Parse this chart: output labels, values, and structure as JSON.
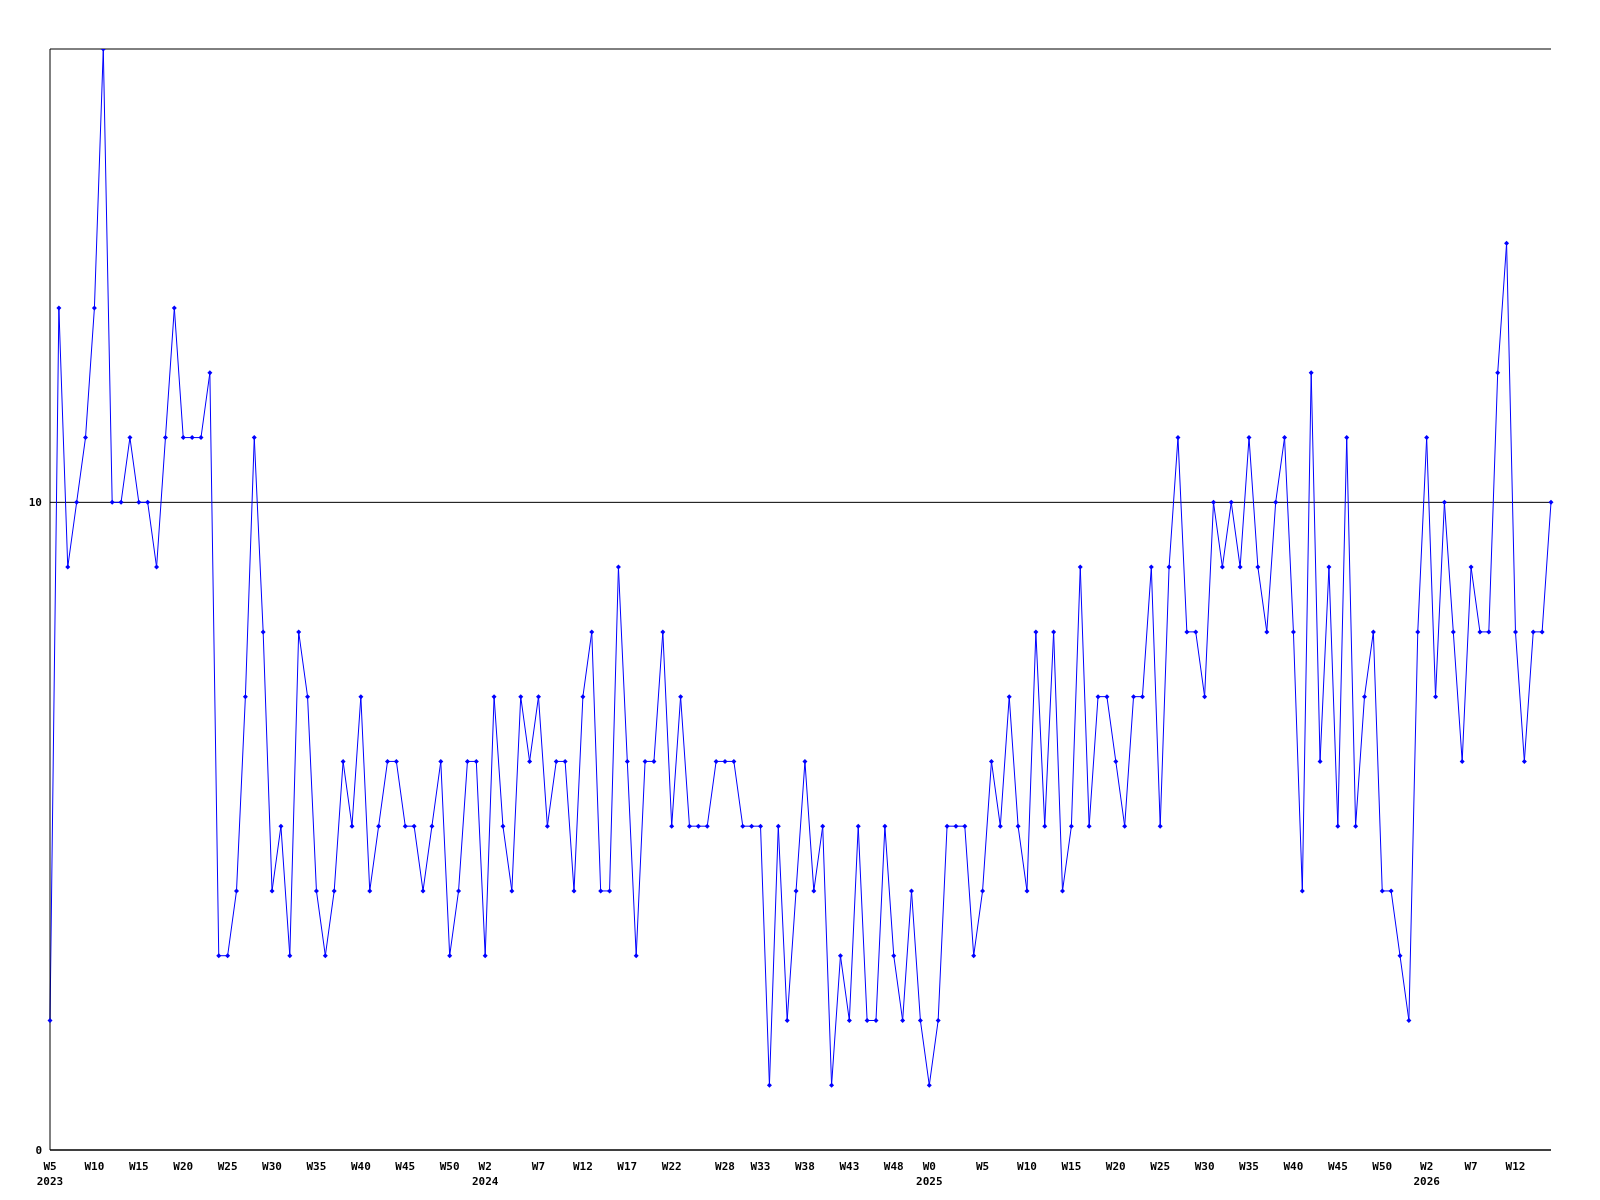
{
  "chart_data": {
    "type": "line",
    "categories": [
      "W5\n2023",
      null,
      null,
      null,
      null,
      "W10",
      null,
      null,
      null,
      null,
      "W15",
      null,
      null,
      null,
      null,
      "W20",
      null,
      null,
      null,
      null,
      "W25",
      null,
      null,
      null,
      null,
      "W30",
      null,
      null,
      null,
      null,
      "W35",
      null,
      null,
      null,
      null,
      "W40",
      null,
      null,
      null,
      null,
      "W45",
      null,
      null,
      null,
      null,
      "W50",
      null,
      null,
      null,
      "W2\n2024",
      null,
      null,
      null,
      null,
      null,
      "W7",
      null,
      null,
      null,
      null,
      "W12",
      null,
      null,
      null,
      null,
      "W17",
      null,
      null,
      null,
      null,
      "W22",
      null,
      null,
      null,
      null,
      null,
      "W28",
      null,
      null,
      null,
      "W33",
      null,
      null,
      null,
      null,
      "W38",
      null,
      null,
      null,
      null,
      "W43",
      null,
      null,
      null,
      null,
      "W48",
      null,
      null,
      null,
      "W0\n2025",
      null,
      null,
      null,
      null,
      null,
      "W5",
      null,
      null,
      null,
      null,
      "W10",
      null,
      null,
      null,
      null,
      "W15",
      null,
      null,
      null,
      null,
      "W20",
      null,
      null,
      null,
      null,
      "W25",
      null,
      null,
      null,
      null,
      "W30",
      null,
      null,
      null,
      null,
      "W35",
      null,
      null,
      null,
      null,
      "W40",
      null,
      null,
      null,
      null,
      "W45",
      null,
      null,
      null,
      null,
      "W50",
      null,
      null,
      null,
      null,
      "W2\n2026",
      null,
      null,
      null,
      null,
      "W7",
      null,
      null,
      null,
      null,
      "W12",
      null,
      null,
      null,
      null
    ],
    "series": [
      {
        "color": "#0000ff",
        "values": [
          2,
          13,
          9,
          10,
          11,
          13,
          17,
          10,
          10,
          11,
          10,
          10,
          9,
          11,
          13,
          11,
          11,
          11,
          12,
          3,
          3,
          4,
          7,
          11,
          8,
          4,
          5,
          3,
          8,
          7,
          4,
          3,
          4,
          6,
          5,
          7,
          4,
          5,
          6,
          6,
          5,
          5,
          4,
          5,
          6,
          3,
          4,
          6,
          6,
          3,
          7,
          5,
          4,
          7,
          6,
          7,
          5,
          6,
          6,
          4,
          7,
          8,
          4,
          4,
          9,
          6,
          3,
          6,
          6,
          8,
          5,
          7,
          5,
          5,
          5,
          6,
          6,
          6,
          5,
          5,
          5,
          1,
          5,
          2,
          4,
          6,
          4,
          5,
          1,
          3,
          2,
          5,
          2,
          2,
          5,
          3,
          2,
          4,
          2,
          1,
          2,
          5,
          5,
          5,
          3,
          4,
          6,
          5,
          7,
          5,
          4,
          8,
          5,
          8,
          4,
          5,
          9,
          5,
          7,
          7,
          6,
          5,
          7,
          7,
          9,
          5,
          9,
          11,
          8,
          8,
          7,
          10,
          9,
          10,
          9,
          11,
          9,
          8,
          10,
          11,
          8,
          4,
          12,
          6,
          9,
          5,
          11,
          5,
          7,
          8,
          4,
          4,
          3,
          2,
          8,
          11,
          7,
          10,
          8,
          6,
          9,
          8,
          8,
          12,
          14,
          8,
          6,
          8,
          8,
          10
        ]
      }
    ],
    "ylim": [
      0,
      17
    ],
    "yticks": [
      0,
      10
    ],
    "grid": "y",
    "marker": "diamond"
  }
}
